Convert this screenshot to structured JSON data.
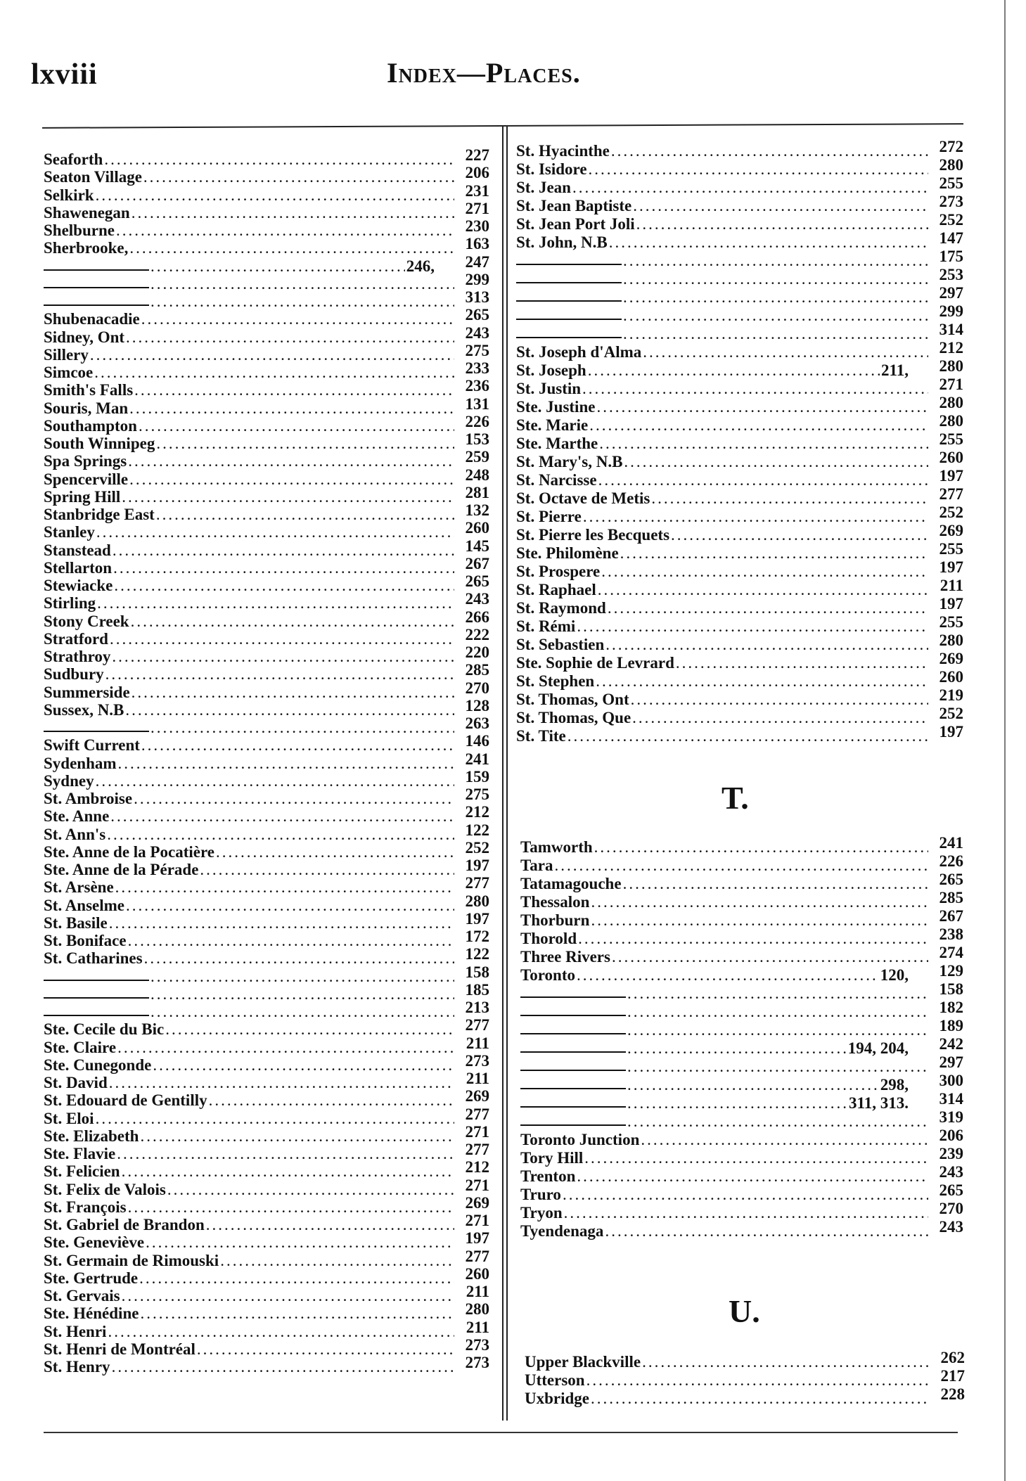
{
  "header": {
    "page_number": "lxviii",
    "title": "Index—Places."
  },
  "left_column": [
    {
      "name": "Seaforth",
      "pages": [
        "227"
      ]
    },
    {
      "name": "Seaton Village",
      "pages": [
        "206"
      ]
    },
    {
      "name": "Selkirk",
      "pages": [
        "231"
      ]
    },
    {
      "name": "Shawenegan",
      "pages": [
        "271"
      ]
    },
    {
      "name": "Shelburne",
      "pages": [
        "230"
      ]
    },
    {
      "name": "Sherbrooke,",
      "pages": [
        "163"
      ]
    },
    {
      "ditto": true,
      "pages": [
        "246,",
        "247"
      ]
    },
    {
      "ditto": true,
      "pages": [
        "299"
      ]
    },
    {
      "ditto": true,
      "pages": [
        "313"
      ]
    },
    {
      "name": "Shubenacadie",
      "pages": [
        "265"
      ]
    },
    {
      "name": "Sidney, Ont",
      "pages": [
        "243"
      ]
    },
    {
      "name": "Sillery",
      "pages": [
        "275"
      ]
    },
    {
      "name": "Simcoe",
      "pages": [
        "233"
      ]
    },
    {
      "name": "Smith's Falls",
      "pages": [
        "236"
      ]
    },
    {
      "name": "Souris, Man",
      "pages": [
        "131"
      ]
    },
    {
      "name": "Southampton",
      "pages": [
        "226"
      ]
    },
    {
      "name": "South Winnipeg",
      "pages": [
        "153"
      ]
    },
    {
      "name": "Spa Springs",
      "pages": [
        "259"
      ]
    },
    {
      "name": "Spencerville",
      "pages": [
        "248"
      ]
    },
    {
      "name": "Spring Hill",
      "pages": [
        "281"
      ]
    },
    {
      "name": "Stanbridge East",
      "pages": [
        "132"
      ]
    },
    {
      "name": "Stanley",
      "pages": [
        "260"
      ]
    },
    {
      "name": "Stanstead",
      "pages": [
        "145"
      ]
    },
    {
      "name": "Stellarton",
      "pages": [
        "267"
      ]
    },
    {
      "name": "Stewiacke",
      "pages": [
        "265"
      ]
    },
    {
      "name": "Stirling",
      "pages": [
        "243"
      ]
    },
    {
      "name": "Stony Creek",
      "pages": [
        "266"
      ]
    },
    {
      "name": "Stratford",
      "pages": [
        "222"
      ]
    },
    {
      "name": "Strathroy",
      "pages": [
        "220"
      ]
    },
    {
      "name": "Sudbury",
      "pages": [
        "285"
      ]
    },
    {
      "name": "Summerside",
      "pages": [
        "270"
      ]
    },
    {
      "name": "Sussex, N.B",
      "pages": [
        "128"
      ]
    },
    {
      "ditto": true,
      "pages": [
        "263"
      ]
    },
    {
      "name": "Swift Current",
      "pages": [
        "146"
      ]
    },
    {
      "name": "Sydenham",
      "pages": [
        "241"
      ]
    },
    {
      "name": "Sydney",
      "pages": [
        "159"
      ]
    },
    {
      "name": "St. Ambroise",
      "pages": [
        "275"
      ]
    },
    {
      "name": "Ste. Anne",
      "pages": [
        "212"
      ]
    },
    {
      "name": "St. Ann's",
      "pages": [
        "122"
      ]
    },
    {
      "name": "Ste. Anne de la Pocatière",
      "pages": [
        "252"
      ]
    },
    {
      "name": "Ste. Anne de la Pérade",
      "pages": [
        "197"
      ]
    },
    {
      "name": "St. Arsène",
      "pages": [
        "277"
      ]
    },
    {
      "name": "St. Anselme",
      "pages": [
        "280"
      ]
    },
    {
      "name": "St. Basile",
      "pages": [
        "197"
      ]
    },
    {
      "name": "St. Boniface",
      "pages": [
        "172"
      ]
    },
    {
      "name": "St. Catharines",
      "pages": [
        "122"
      ]
    },
    {
      "ditto": true,
      "pages": [
        "158"
      ]
    },
    {
      "ditto": true,
      "pages": [
        "185"
      ]
    },
    {
      "ditto": true,
      "pages": [
        "213"
      ]
    },
    {
      "name": "Ste. Cecile du Bic",
      "pages": [
        "277"
      ]
    },
    {
      "name": "Ste. Claire",
      "pages": [
        "211"
      ]
    },
    {
      "name": "Ste. Cunegonde",
      "pages": [
        "273"
      ]
    },
    {
      "name": "St. David",
      "pages": [
        "211"
      ]
    },
    {
      "name": "St. Edouard de Gentilly",
      "pages": [
        "269"
      ]
    },
    {
      "name": "St. Eloi",
      "pages": [
        "277"
      ]
    },
    {
      "name": "Ste. Elizabeth",
      "pages": [
        "271"
      ]
    },
    {
      "name": "Ste. Flavie",
      "pages": [
        "277"
      ]
    },
    {
      "name": "St. Felicien",
      "pages": [
        "212"
      ]
    },
    {
      "name": "St. Felix de Valois",
      "pages": [
        "271"
      ]
    },
    {
      "name": "St. François",
      "pages": [
        "269"
      ]
    },
    {
      "name": "St. Gabriel de Brandon",
      "pages": [
        "271"
      ]
    },
    {
      "name": "Ste. Geneviève",
      "pages": [
        "197"
      ]
    },
    {
      "name": "St. Germain de Rimouski",
      "pages": [
        "277"
      ]
    },
    {
      "name": "Ste. Gertrude",
      "pages": [
        "260"
      ]
    },
    {
      "name": "St. Gervais",
      "pages": [
        "211"
      ]
    },
    {
      "name": "Ste. Hénédine",
      "pages": [
        "280"
      ]
    },
    {
      "name": "St. Henri",
      "pages": [
        "211"
      ]
    },
    {
      "name": "St. Henri de Montréal",
      "pages": [
        "273"
      ]
    },
    {
      "name": "St. Henry",
      "pages": [
        "273"
      ]
    }
  ],
  "right_column": [
    {
      "name": "St. Hyacinthe",
      "pages": [
        "272"
      ]
    },
    {
      "name": "St. Isidore",
      "pages": [
        "280"
      ]
    },
    {
      "name": "St. Jean",
      "pages": [
        "255"
      ]
    },
    {
      "name": "St. Jean Baptiste",
      "pages": [
        "273"
      ]
    },
    {
      "name": "St. Jean Port Joli",
      "pages": [
        "252"
      ]
    },
    {
      "name": "St. John, N.B",
      "pages": [
        "147"
      ]
    },
    {
      "ditto": true,
      "pages": [
        "175"
      ]
    },
    {
      "ditto": true,
      "pages": [
        "253"
      ]
    },
    {
      "ditto": true,
      "pages": [
        "297"
      ]
    },
    {
      "ditto": true,
      "pages": [
        "299"
      ]
    },
    {
      "ditto": true,
      "pages": [
        "314"
      ]
    },
    {
      "name": "St. Joseph d'Alma",
      "pages": [
        "212"
      ]
    },
    {
      "name": "St. Joseph",
      "pages": [
        "211,",
        "280"
      ]
    },
    {
      "name": "St. Justin",
      "pages": [
        "271"
      ]
    },
    {
      "name": "Ste. Justine",
      "pages": [
        "280"
      ]
    },
    {
      "name": "Ste. Marie",
      "pages": [
        "280"
      ]
    },
    {
      "name": "Ste. Marthe",
      "pages": [
        "255"
      ]
    },
    {
      "name": "St. Mary's, N.B",
      "pages": [
        "260"
      ]
    },
    {
      "name": "St. Narcisse",
      "pages": [
        "197"
      ]
    },
    {
      "name": "St. Octave de Metis",
      "pages": [
        "277"
      ]
    },
    {
      "name": "St. Pierre",
      "pages": [
        "252"
      ]
    },
    {
      "name": "St. Pierre les Becquets",
      "pages": [
        "269"
      ]
    },
    {
      "name": "Ste. Philomène",
      "pages": [
        "255"
      ]
    },
    {
      "name": "St. Prospere",
      "pages": [
        "197"
      ]
    },
    {
      "name": "St. Raphael",
      "pages": [
        "211"
      ]
    },
    {
      "name": "St. Raymond",
      "pages": [
        "197"
      ]
    },
    {
      "name": "St. Rémi",
      "pages": [
        "255"
      ]
    },
    {
      "name": "St. Sebastien",
      "pages": [
        "280"
      ]
    },
    {
      "name": "Ste. Sophie de Levrard",
      "pages": [
        "269"
      ]
    },
    {
      "name": "St. Stephen",
      "pages": [
        "260"
      ]
    },
    {
      "name": "St. Thomas, Ont",
      "pages": [
        "219"
      ]
    },
    {
      "name": "St. Thomas, Que",
      "pages": [
        "252"
      ]
    },
    {
      "name": "St. Tite",
      "pages": [
        "197"
      ]
    }
  ],
  "section_t": {
    "letter": "T.",
    "entries": [
      {
        "name": "Tamworth",
        "pages": [
          "241"
        ]
      },
      {
        "name": "Tara",
        "pages": [
          "226"
        ]
      },
      {
        "name": "Tatamagouche",
        "pages": [
          "265"
        ]
      },
      {
        "name": "Thessalon",
        "pages": [
          "285"
        ]
      },
      {
        "name": "Thorburn",
        "pages": [
          "267"
        ]
      },
      {
        "name": "Thorold",
        "pages": [
          "238"
        ]
      },
      {
        "name": "Three Rivers",
        "pages": [
          "274"
        ]
      },
      {
        "name": "Toronto",
        "pages": [
          "120,",
          "129"
        ]
      },
      {
        "ditto": true,
        "pages": [
          "158"
        ]
      },
      {
        "ditto": true,
        "pages": [
          "182"
        ]
      },
      {
        "ditto": true,
        "pages": [
          "189"
        ]
      },
      {
        "ditto": true,
        "pages": [
          "194, 204,",
          "242"
        ]
      },
      {
        "ditto": true,
        "pages": [
          "297"
        ]
      },
      {
        "ditto": true,
        "pages": [
          "298,",
          "300"
        ]
      },
      {
        "ditto": true,
        "pages": [
          "311, 313.",
          "314"
        ]
      },
      {
        "ditto": true,
        "pages": [
          "319"
        ]
      },
      {
        "name": "Toronto Junction",
        "pages": [
          "206"
        ]
      },
      {
        "name": "Tory Hill",
        "pages": [
          "239"
        ]
      },
      {
        "name": "Trenton",
        "pages": [
          "243"
        ]
      },
      {
        "name": "Truro",
        "pages": [
          "265"
        ]
      },
      {
        "name": "Tryon",
        "pages": [
          "270"
        ]
      },
      {
        "name": "Tyendenaga",
        "pages": [
          "243"
        ]
      }
    ]
  },
  "section_u": {
    "letter": "U.",
    "entries": [
      {
        "name": "Upper Blackville",
        "pages": [
          "262"
        ]
      },
      {
        "name": "Utterson",
        "pages": [
          "217"
        ]
      },
      {
        "name": "Uxbridge",
        "pages": [
          "228"
        ]
      }
    ]
  }
}
